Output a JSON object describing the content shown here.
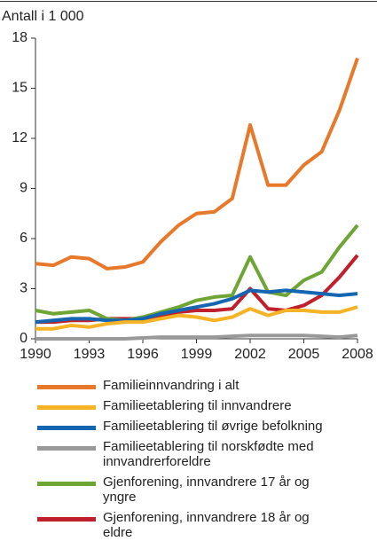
{
  "chart_data": {
    "type": "line",
    "y_label": "Antall i 1 000",
    "x": [
      1990,
      1991,
      1992,
      1993,
      1994,
      1995,
      1996,
      1997,
      1998,
      1999,
      2000,
      2001,
      2002,
      2003,
      2004,
      2005,
      2006,
      2007,
      2008
    ],
    "xlim": [
      1990,
      2008
    ],
    "xticks": [
      1990,
      1993,
      1996,
      1999,
      2002,
      2005,
      2008
    ],
    "ylim": [
      0,
      18
    ],
    "yticks": [
      0,
      3,
      6,
      9,
      12,
      15,
      18
    ],
    "grid": false,
    "series": [
      {
        "name": "Familieinnvandring i alt",
        "color": "#e8782a",
        "values": [
          4.5,
          4.4,
          4.9,
          4.8,
          4.2,
          4.3,
          4.6,
          5.8,
          6.8,
          7.5,
          7.6,
          8.4,
          12.8,
          9.2,
          9.2,
          10.4,
          11.2,
          13.7,
          16.8
        ]
      },
      {
        "name": "Familieetablering til innvandrere",
        "color": "#f5b325",
        "values": [
          0.6,
          0.6,
          0.8,
          0.7,
          0.9,
          1.0,
          1.0,
          1.2,
          1.4,
          1.3,
          1.1,
          1.3,
          1.8,
          1.4,
          1.7,
          1.7,
          1.6,
          1.6,
          1.9
        ]
      },
      {
        "name": "Familieetablering til øvrige befolkning",
        "color": "#1565b0",
        "values": [
          1.0,
          1.1,
          1.2,
          1.2,
          1.1,
          1.1,
          1.2,
          1.5,
          1.7,
          1.9,
          2.1,
          2.4,
          2.9,
          2.8,
          2.9,
          2.8,
          2.7,
          2.6,
          2.7
        ]
      },
      {
        "name": "Familieetablering til norskfødte med innvandrerforeldre",
        "color": "#999999",
        "values": [
          0.0,
          0.0,
          0.0,
          0.0,
          0.0,
          0.0,
          0.05,
          0.1,
          0.1,
          0.1,
          0.1,
          0.15,
          0.2,
          0.2,
          0.2,
          0.2,
          0.15,
          0.1,
          0.2
        ]
      },
      {
        "name": "Gjenforening, innvandrere 17 år og yngre",
        "color": "#6ea534",
        "values": [
          1.7,
          1.5,
          1.6,
          1.7,
          1.2,
          1.1,
          1.3,
          1.6,
          1.9,
          2.3,
          2.5,
          2.6,
          4.9,
          2.8,
          2.6,
          3.5,
          4.0,
          5.5,
          6.8
        ]
      },
      {
        "name": "Gjenforening, innvandrere 18 år og eldre",
        "color": "#c0202b",
        "values": [
          1.0,
          1.0,
          1.1,
          1.1,
          1.2,
          1.2,
          1.2,
          1.4,
          1.6,
          1.7,
          1.7,
          1.8,
          3.0,
          1.8,
          1.7,
          2.0,
          2.6,
          3.7,
          5.0
        ]
      }
    ]
  }
}
